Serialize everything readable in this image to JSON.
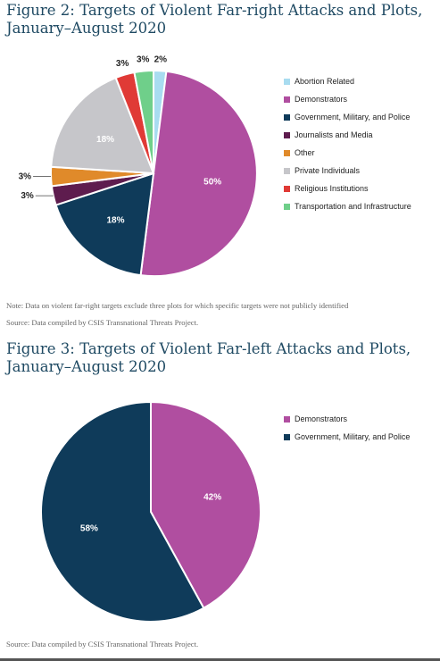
{
  "figure2": {
    "title_line1": "Figure 2: Targets of Violent Far-right Attacks and Plots,",
    "title_line2": "January–August 2020",
    "note": "Note: Data on violent far-right targets exclude three plots for which specific targets were not publicly identified",
    "source": "Source: Data compiled by CSIS Transnational Threats Project."
  },
  "figure3": {
    "title_line1": "Figure 3: Targets of Violent Far-left Attacks and Plots,",
    "title_line2": "January–August 2020",
    "source": "Source: Data compiled by CSIS Transnational Threats Project."
  },
  "colors": {
    "abortion": "#a8dcf0",
    "demonstrators": "#b04ea0",
    "government": "#0f3b5a",
    "journalists": "#5e1c4e",
    "other": "#e08a2a",
    "private": "#c6c6ca",
    "religious": "#e03a36",
    "transportation": "#6fcf8a"
  },
  "chart_data": [
    {
      "type": "pie",
      "title": "Figure 2: Targets of Violent Far-right Attacks and Plots, January–August 2020",
      "legend_position": "right",
      "slices": [
        {
          "name": "Abortion Related",
          "value": 2,
          "label": "2%",
          "color_key": "abortion"
        },
        {
          "name": "Demonstrators",
          "value": 50,
          "label": "50%",
          "color_key": "demonstrators"
        },
        {
          "name": "Government, Military, and Police",
          "value": 18,
          "label": "18%",
          "color_key": "government"
        },
        {
          "name": "Journalists and Media",
          "value": 3,
          "label": "3%",
          "color_key": "journalists"
        },
        {
          "name": "Other",
          "value": 3,
          "label": "3%",
          "color_key": "other"
        },
        {
          "name": "Private Individuals",
          "value": 18,
          "label": "18%",
          "color_key": "private"
        },
        {
          "name": "Religious Institutions",
          "value": 3,
          "label": "3%",
          "color_key": "religious"
        },
        {
          "name": "Transportation and Infrastructure",
          "value": 3,
          "label": "3%",
          "color_key": "transportation"
        }
      ]
    },
    {
      "type": "pie",
      "title": "Figure 3: Targets of Violent Far-left Attacks and Plots, January–August 2020",
      "legend_position": "right",
      "slices": [
        {
          "name": "Demonstrators",
          "value": 42,
          "label": "42%",
          "color_key": "demonstrators"
        },
        {
          "name": "Government, Military, and Police",
          "value": 58,
          "label": "58%",
          "color_key": "government"
        }
      ]
    }
  ]
}
